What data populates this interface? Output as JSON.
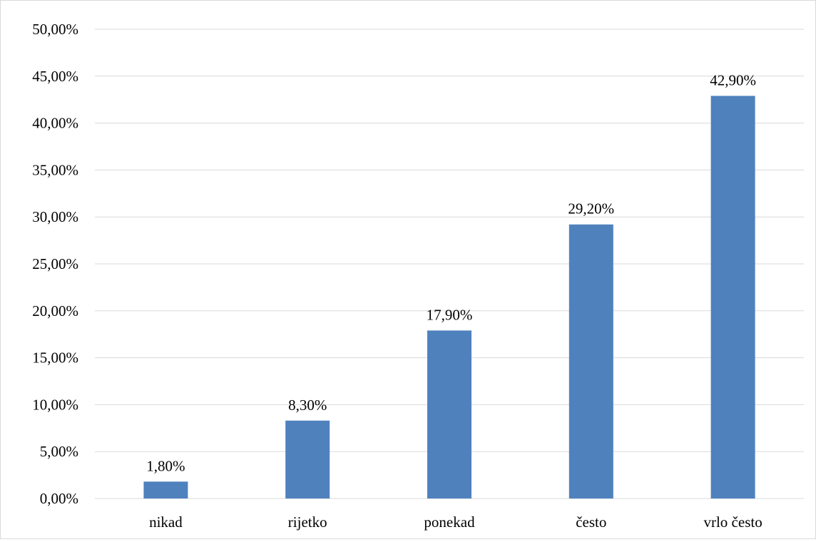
{
  "chart_data": {
    "type": "bar",
    "title": "",
    "xlabel": "",
    "ylabel": "",
    "categories": [
      "nikad",
      "rijetko",
      "ponekad",
      "često",
      "vrlo često"
    ],
    "values": [
      1.8,
      8.3,
      17.9,
      29.2,
      42.9
    ],
    "value_labels": [
      "1,80%",
      "8,30%",
      "17,90%",
      "29,20%",
      "42,90%"
    ],
    "ylim": [
      0,
      50
    ],
    "y_ticks": [
      0,
      5,
      10,
      15,
      20,
      25,
      30,
      35,
      40,
      45,
      50
    ],
    "y_tick_labels": [
      "0,00%",
      "5,00%",
      "10,00%",
      "15,00%",
      "20,00%",
      "25,00%",
      "30,00%",
      "35,00%",
      "40,00%",
      "45,00%",
      "50,00%"
    ],
    "grid": true,
    "legend": "none",
    "bar_color": "#4f81bd",
    "grid_color": "#d9d9d9"
  }
}
